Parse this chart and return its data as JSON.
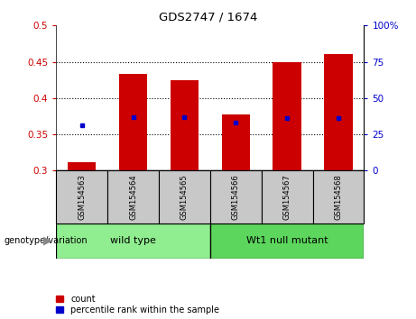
{
  "title": "GDS2747 / 1674",
  "categories": [
    "GSM154563",
    "GSM154564",
    "GSM154565",
    "GSM154566",
    "GSM154567",
    "GSM154568"
  ],
  "bar_bottoms": [
    0.3,
    0.3,
    0.3,
    0.3,
    0.3,
    0.3
  ],
  "bar_tops": [
    0.312,
    0.433,
    0.425,
    0.378,
    0.45,
    0.461
  ],
  "blue_dots": [
    0.362,
    0.374,
    0.374,
    0.366,
    0.372,
    0.372
  ],
  "bar_color": "#cc0000",
  "dot_color": "#0000cc",
  "ylim_left": [
    0.3,
    0.5
  ],
  "ylim_right": [
    0,
    100
  ],
  "yticks_left": [
    0.3,
    0.35,
    0.4,
    0.45,
    0.5
  ],
  "yticks_right": [
    0,
    25,
    50,
    75,
    100
  ],
  "left_tick_labels": [
    "0.3",
    "0.35",
    "0.4",
    "0.45",
    "0.5"
  ],
  "right_tick_labels": [
    "0",
    "25",
    "50",
    "75",
    "100%"
  ],
  "grid_lines": [
    0.35,
    0.4,
    0.45
  ],
  "group1_label": "wild type",
  "group2_label": "Wt1 null mutant",
  "group_label_prefix": "genotype/variation",
  "legend_count_label": "count",
  "legend_pct_label": "percentile rank within the sample",
  "group1_color": "#90ee90",
  "group2_color": "#5cd65c",
  "sample_box_color": "#c8c8c8",
  "xlabel_color": "#cc0000",
  "ylabel_right_color": "#0000cc",
  "bar_width": 0.55,
  "figsize": [
    4.61,
    3.54
  ],
  "dpi": 100
}
